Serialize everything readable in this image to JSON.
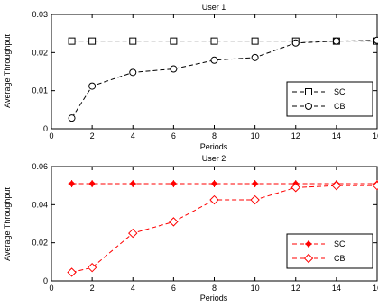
{
  "chart_data": [
    {
      "type": "line",
      "title": "User 1",
      "xlabel": "Periods",
      "ylabel": "Average Throughput",
      "xlim": [
        0,
        16
      ],
      "ylim": [
        0,
        0.03
      ],
      "xticks": [
        0,
        2,
        4,
        6,
        8,
        10,
        12,
        14,
        16
      ],
      "xtick_labels": [
        "0",
        "2",
        "4",
        "6",
        "8",
        "10",
        "12",
        "14",
        "16"
      ],
      "yticks": [
        0,
        0.01,
        0.02,
        0.03
      ],
      "ytick_labels": [
        "0",
        "0.01",
        "0.02",
        "0.03"
      ],
      "grid": false,
      "legend_position": "lower-right",
      "x": [
        1,
        2,
        4,
        6,
        8,
        10,
        12,
        14,
        16
      ],
      "series": [
        {
          "name": "SC",
          "values": [
            0.023,
            0.023,
            0.023,
            0.023,
            0.023,
            0.023,
            0.023,
            0.023,
            0.023
          ],
          "color": "#000000",
          "marker": "square",
          "line_style": "dashed"
        },
        {
          "name": "CB",
          "values": [
            0.0028,
            0.0112,
            0.0148,
            0.0157,
            0.018,
            0.0187,
            0.0225,
            0.023,
            0.0232
          ],
          "color": "#000000",
          "marker": "circle",
          "line_style": "dashed"
        }
      ]
    },
    {
      "type": "line",
      "title": "User 2",
      "xlabel": "Periods",
      "ylabel": "Average Throughput",
      "xlim": [
        0,
        16
      ],
      "ylim": [
        0,
        0.06
      ],
      "xticks": [
        0,
        2,
        4,
        6,
        8,
        10,
        12,
        14,
        16
      ],
      "xtick_labels": [
        "0",
        "2",
        "4",
        "6",
        "8",
        "10",
        "12",
        "14",
        "16"
      ],
      "yticks": [
        0,
        0.02,
        0.04,
        0.06
      ],
      "ytick_labels": [
        "0",
        "0.02",
        "0.04",
        "0.06"
      ],
      "grid": false,
      "legend_position": "lower-right",
      "x": [
        1,
        2,
        4,
        6,
        8,
        10,
        12,
        14,
        16
      ],
      "series": [
        {
          "name": "SC",
          "values": [
            0.051,
            0.051,
            0.051,
            0.051,
            0.051,
            0.051,
            0.051,
            0.051,
            0.051
          ],
          "color": "#ff0000",
          "marker": "plus-diamond",
          "line_style": "dashed"
        },
        {
          "name": "CB",
          "values": [
            0.0045,
            0.007,
            0.025,
            0.031,
            0.0425,
            0.0425,
            0.049,
            0.05,
            0.05
          ],
          "color": "#ff0000",
          "marker": "diamond",
          "line_style": "dashed"
        }
      ]
    }
  ]
}
